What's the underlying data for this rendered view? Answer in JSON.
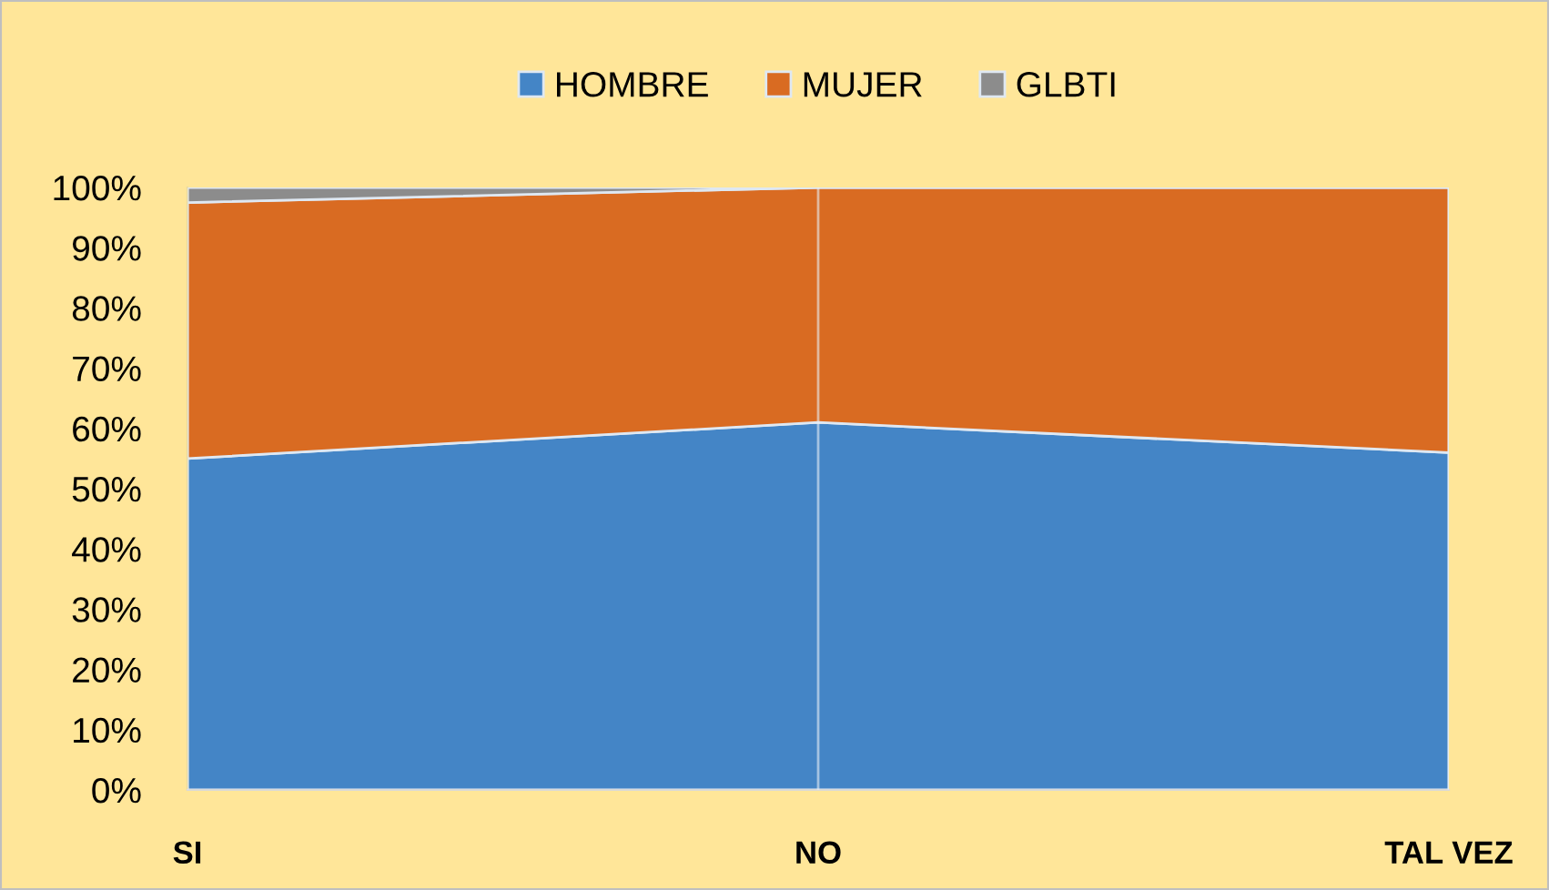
{
  "chart_data": {
    "type": "area",
    "stacked": true,
    "categories": [
      "SI",
      "NO",
      "TAL VEZ"
    ],
    "series": [
      {
        "name": "HOMBRE",
        "color": "#4485c6",
        "values": [
          55,
          61,
          56
        ]
      },
      {
        "name": "MUJER",
        "color": "#d96b22",
        "values": [
          42.5,
          39,
          44
        ]
      },
      {
        "name": "GLBTI",
        "color": "#8c8c8c",
        "values": [
          2.5,
          0,
          0
        ]
      }
    ],
    "ylim": [
      0,
      100
    ],
    "yticks": [
      {
        "value": 0,
        "label": "0%"
      },
      {
        "value": 10,
        "label": "10%"
      },
      {
        "value": 20,
        "label": "20%"
      },
      {
        "value": 30,
        "label": "30%"
      },
      {
        "value": 40,
        "label": "40%"
      },
      {
        "value": 50,
        "label": "50%"
      },
      {
        "value": 60,
        "label": "60%"
      },
      {
        "value": 70,
        "label": "70%"
      },
      {
        "value": 80,
        "label": "80%"
      },
      {
        "value": 90,
        "label": "90%"
      },
      {
        "value": 100,
        "label": "100%"
      }
    ],
    "grid": "x",
    "legend": "top"
  }
}
